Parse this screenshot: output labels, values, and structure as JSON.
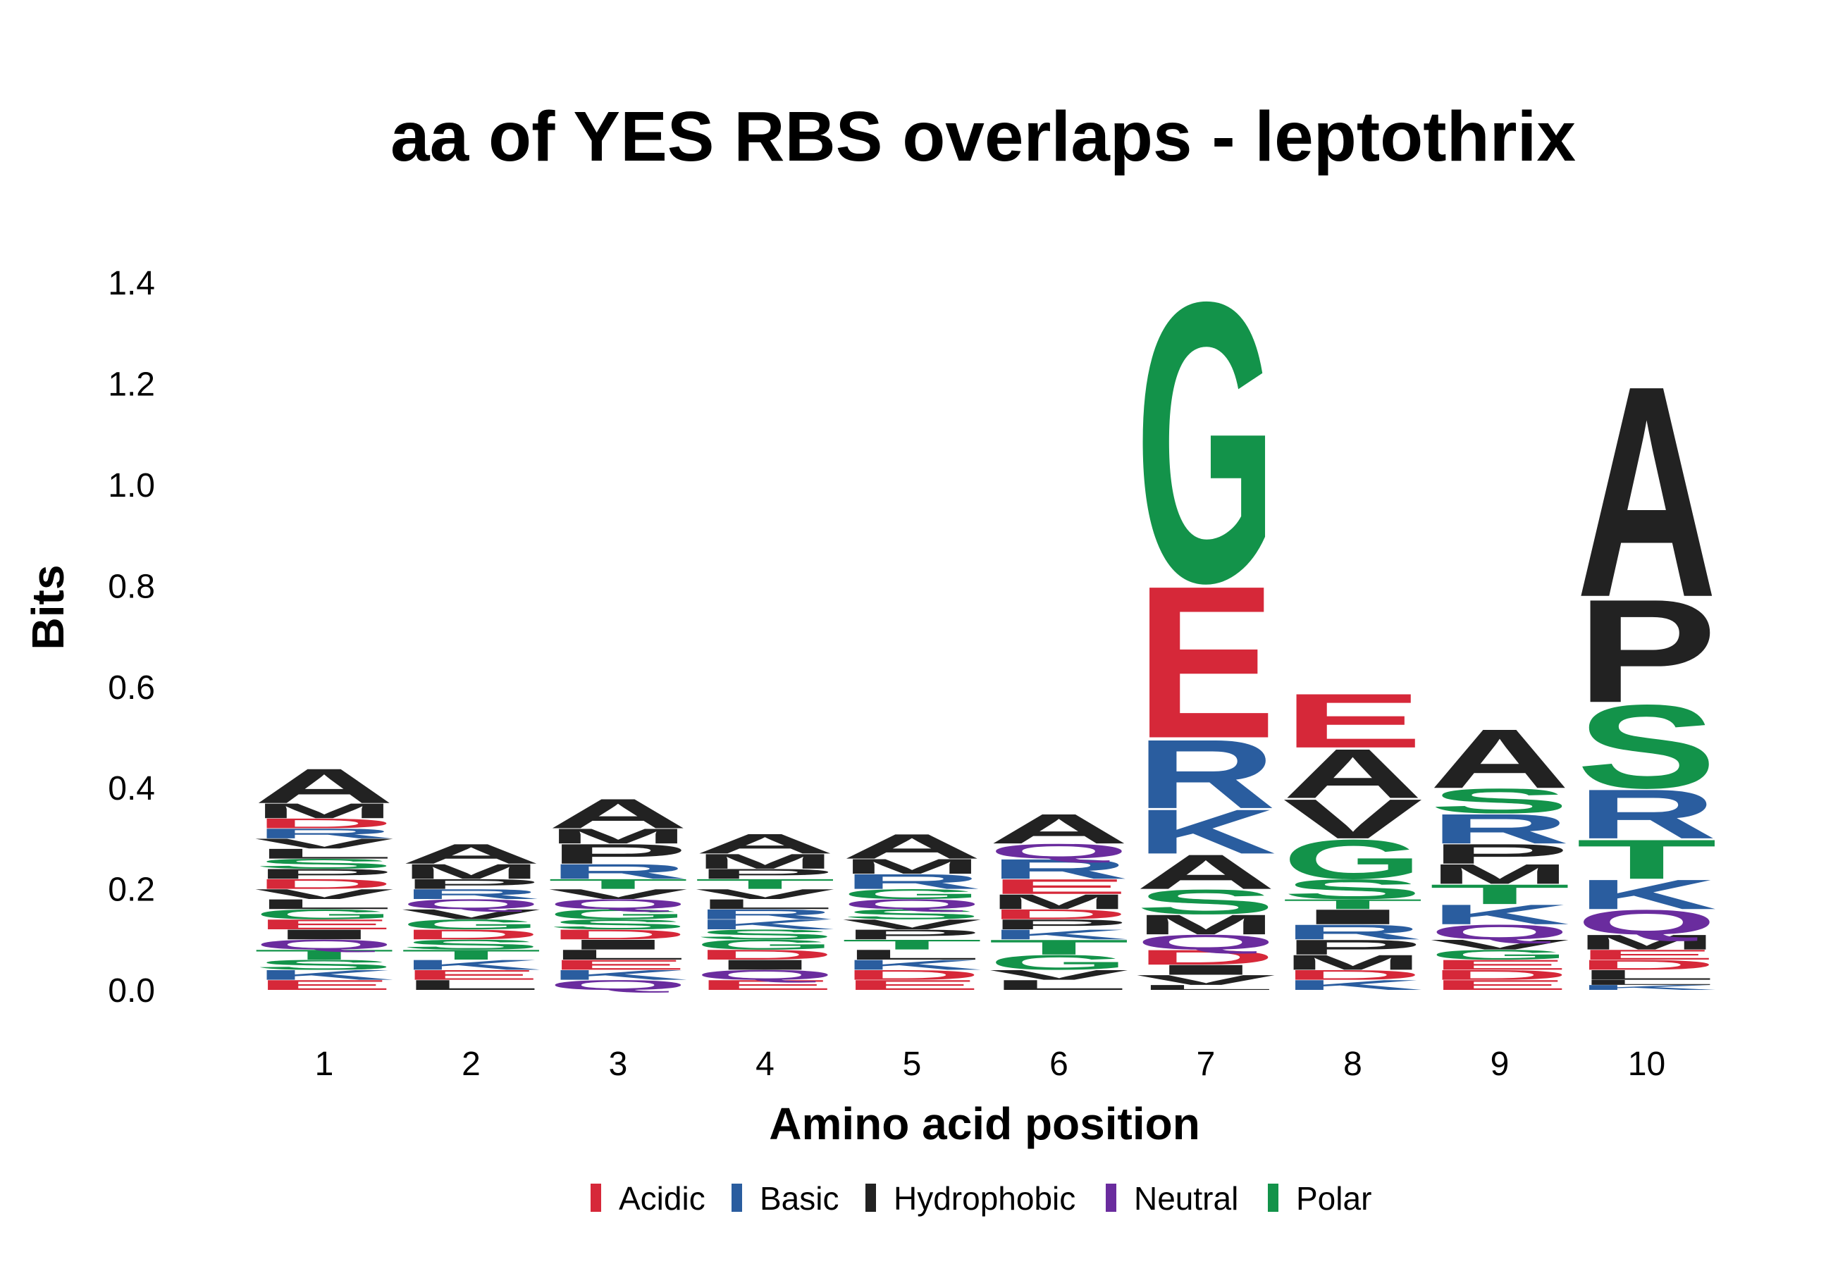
{
  "chart_data": {
    "type": "sequence-logo",
    "title": "aa of YES RBS overlaps - leptothrix",
    "xlabel": "Amino acid position",
    "ylabel": "Bits",
    "ylim": [
      0,
      1.5
    ],
    "yticks": [
      "0.0",
      "0.2",
      "0.4",
      "0.6",
      "0.8",
      "1.0",
      "1.2",
      "1.4"
    ],
    "positions": [
      "1",
      "2",
      "3",
      "4",
      "5",
      "6",
      "7",
      "8",
      "9",
      "10"
    ],
    "legend": [
      {
        "label": "Acidic",
        "color": "#d62839"
      },
      {
        "label": "Basic",
        "color": "#2a5d9f"
      },
      {
        "label": "Hydrophobic",
        "color": "#222222"
      },
      {
        "label": "Neutral",
        "color": "#6a2c9e"
      },
      {
        "label": "Polar",
        "color": "#13934a"
      }
    ],
    "columns": [
      {
        "position": "1",
        "letters": [
          {
            "aa": "E",
            "class": "Acidic",
            "bits": 0.02
          },
          {
            "aa": "K",
            "class": "Basic",
            "bits": 0.02
          },
          {
            "aa": "S",
            "class": "Polar",
            "bits": 0.02
          },
          {
            "aa": "T",
            "class": "Polar",
            "bits": 0.02
          },
          {
            "aa": "Q",
            "class": "Neutral",
            "bits": 0.02
          },
          {
            "aa": "I",
            "class": "Hydrophobic",
            "bits": 0.02
          },
          {
            "aa": "E",
            "class": "Acidic",
            "bits": 0.02
          },
          {
            "aa": "G",
            "class": "Polar",
            "bits": 0.02
          },
          {
            "aa": "L",
            "class": "Hydrophobic",
            "bits": 0.02
          },
          {
            "aa": "V",
            "class": "Hydrophobic",
            "bits": 0.02
          },
          {
            "aa": "D",
            "class": "Acidic",
            "bits": 0.02
          },
          {
            "aa": "P",
            "class": "Hydrophobic",
            "bits": 0.02
          },
          {
            "aa": "S",
            "class": "Polar",
            "bits": 0.02
          },
          {
            "aa": "L",
            "class": "Hydrophobic",
            "bits": 0.02
          },
          {
            "aa": "V",
            "class": "Hydrophobic",
            "bits": 0.02
          },
          {
            "aa": "R",
            "class": "Basic",
            "bits": 0.02
          },
          {
            "aa": "D",
            "class": "Acidic",
            "bits": 0.02
          },
          {
            "aa": "M",
            "class": "Hydrophobic",
            "bits": 0.03
          },
          {
            "aa": "A",
            "class": "Hydrophobic",
            "bits": 0.07
          }
        ]
      },
      {
        "position": "2",
        "letters": [
          {
            "aa": "L",
            "class": "Hydrophobic",
            "bits": 0.02
          },
          {
            "aa": "E",
            "class": "Acidic",
            "bits": 0.02
          },
          {
            "aa": "K",
            "class": "Basic",
            "bits": 0.02
          },
          {
            "aa": "T",
            "class": "Polar",
            "bits": 0.02
          },
          {
            "aa": "S",
            "class": "Polar",
            "bits": 0.02
          },
          {
            "aa": "D",
            "class": "Acidic",
            "bits": 0.02
          },
          {
            "aa": "G",
            "class": "Polar",
            "bits": 0.02
          },
          {
            "aa": "V",
            "class": "Hydrophobic",
            "bits": 0.02
          },
          {
            "aa": "Q",
            "class": "Neutral",
            "bits": 0.02
          },
          {
            "aa": "R",
            "class": "Basic",
            "bits": 0.02
          },
          {
            "aa": "P",
            "class": "Hydrophobic",
            "bits": 0.02
          },
          {
            "aa": "M",
            "class": "Hydrophobic",
            "bits": 0.03
          },
          {
            "aa": "A",
            "class": "Hydrophobic",
            "bits": 0.04
          }
        ]
      },
      {
        "position": "3",
        "letters": [
          {
            "aa": "Q",
            "class": "Neutral",
            "bits": 0.02
          },
          {
            "aa": "K",
            "class": "Basic",
            "bits": 0.02
          },
          {
            "aa": "E",
            "class": "Acidic",
            "bits": 0.02
          },
          {
            "aa": "L",
            "class": "Hydrophobic",
            "bits": 0.02
          },
          {
            "aa": "I",
            "class": "Hydrophobic",
            "bits": 0.02
          },
          {
            "aa": "D",
            "class": "Acidic",
            "bits": 0.02
          },
          {
            "aa": "S",
            "class": "Polar",
            "bits": 0.02
          },
          {
            "aa": "G",
            "class": "Polar",
            "bits": 0.02
          },
          {
            "aa": "Q",
            "class": "Neutral",
            "bits": 0.02
          },
          {
            "aa": "V",
            "class": "Hydrophobic",
            "bits": 0.02
          },
          {
            "aa": "T",
            "class": "Polar",
            "bits": 0.02
          },
          {
            "aa": "R",
            "class": "Basic",
            "bits": 0.03
          },
          {
            "aa": "P",
            "class": "Hydrophobic",
            "bits": 0.04
          },
          {
            "aa": "M",
            "class": "Hydrophobic",
            "bits": 0.03
          },
          {
            "aa": "A",
            "class": "Hydrophobic",
            "bits": 0.06
          }
        ]
      },
      {
        "position": "4",
        "letters": [
          {
            "aa": "E",
            "class": "Acidic",
            "bits": 0.02
          },
          {
            "aa": "Q",
            "class": "Neutral",
            "bits": 0.02
          },
          {
            "aa": "I",
            "class": "Hydrophobic",
            "bits": 0.02
          },
          {
            "aa": "D",
            "class": "Acidic",
            "bits": 0.02
          },
          {
            "aa": "G",
            "class": "Polar",
            "bits": 0.02
          },
          {
            "aa": "S",
            "class": "Polar",
            "bits": 0.02
          },
          {
            "aa": "K",
            "class": "Basic",
            "bits": 0.02
          },
          {
            "aa": "R",
            "class": "Basic",
            "bits": 0.02
          },
          {
            "aa": "L",
            "class": "Hydrophobic",
            "bits": 0.02
          },
          {
            "aa": "V",
            "class": "Hydrophobic",
            "bits": 0.02
          },
          {
            "aa": "T",
            "class": "Polar",
            "bits": 0.02
          },
          {
            "aa": "P",
            "class": "Hydrophobic",
            "bits": 0.02
          },
          {
            "aa": "M",
            "class": "Hydrophobic",
            "bits": 0.03
          },
          {
            "aa": "A",
            "class": "Hydrophobic",
            "bits": 0.04
          }
        ]
      },
      {
        "position": "5",
        "letters": [
          {
            "aa": "E",
            "class": "Acidic",
            "bits": 0.02
          },
          {
            "aa": "D",
            "class": "Acidic",
            "bits": 0.02
          },
          {
            "aa": "K",
            "class": "Basic",
            "bits": 0.02
          },
          {
            "aa": "L",
            "class": "Hydrophobic",
            "bits": 0.02
          },
          {
            "aa": "T",
            "class": "Polar",
            "bits": 0.02
          },
          {
            "aa": "P",
            "class": "Hydrophobic",
            "bits": 0.02
          },
          {
            "aa": "V",
            "class": "Hydrophobic",
            "bits": 0.02
          },
          {
            "aa": "S",
            "class": "Polar",
            "bits": 0.02
          },
          {
            "aa": "Q",
            "class": "Neutral",
            "bits": 0.02
          },
          {
            "aa": "G",
            "class": "Polar",
            "bits": 0.02
          },
          {
            "aa": "R",
            "class": "Basic",
            "bits": 0.03
          },
          {
            "aa": "M",
            "class": "Hydrophobic",
            "bits": 0.03
          },
          {
            "aa": "A",
            "class": "Hydrophobic",
            "bits": 0.05
          }
        ]
      },
      {
        "position": "6",
        "letters": [
          {
            "aa": "L",
            "class": "Hydrophobic",
            "bits": 0.02
          },
          {
            "aa": "V",
            "class": "Hydrophobic",
            "bits": 0.02
          },
          {
            "aa": "G",
            "class": "Polar",
            "bits": 0.03
          },
          {
            "aa": "T",
            "class": "Polar",
            "bits": 0.03
          },
          {
            "aa": "K",
            "class": "Basic",
            "bits": 0.02
          },
          {
            "aa": "P",
            "class": "Hydrophobic",
            "bits": 0.02
          },
          {
            "aa": "D",
            "class": "Acidic",
            "bits": 0.02
          },
          {
            "aa": "M",
            "class": "Hydrophobic",
            "bits": 0.03
          },
          {
            "aa": "E",
            "class": "Acidic",
            "bits": 0.03
          },
          {
            "aa": "R",
            "class": "Basic",
            "bits": 0.04
          },
          {
            "aa": "Q",
            "class": "Neutral",
            "bits": 0.03
          },
          {
            "aa": "A",
            "class": "Hydrophobic",
            "bits": 0.06
          }
        ]
      },
      {
        "position": "7",
        "letters": [
          {
            "aa": "L",
            "class": "Hydrophobic",
            "bits": 0.01
          },
          {
            "aa": "V",
            "class": "Hydrophobic",
            "bits": 0.02
          },
          {
            "aa": "I",
            "class": "Hydrophobic",
            "bits": 0.02
          },
          {
            "aa": "D",
            "class": "Acidic",
            "bits": 0.03
          },
          {
            "aa": "Q",
            "class": "Neutral",
            "bits": 0.03
          },
          {
            "aa": "M",
            "class": "Hydrophobic",
            "bits": 0.04
          },
          {
            "aa": "S",
            "class": "Polar",
            "bits": 0.05
          },
          {
            "aa": "A",
            "class": "Hydrophobic",
            "bits": 0.07
          },
          {
            "aa": "K",
            "class": "Basic",
            "bits": 0.09
          },
          {
            "aa": "R",
            "class": "Basic",
            "bits": 0.14
          },
          {
            "aa": "E",
            "class": "Acidic",
            "bits": 0.31
          },
          {
            "aa": "G",
            "class": "Polar",
            "bits": 0.57
          }
        ]
      },
      {
        "position": "8",
        "letters": [
          {
            "aa": "K",
            "class": "Basic",
            "bits": 0.02
          },
          {
            "aa": "D",
            "class": "Acidic",
            "bits": 0.02
          },
          {
            "aa": "M",
            "class": "Hydrophobic",
            "bits": 0.03
          },
          {
            "aa": "P",
            "class": "Hydrophobic",
            "bits": 0.03
          },
          {
            "aa": "R",
            "class": "Basic",
            "bits": 0.03
          },
          {
            "aa": "I",
            "class": "Hydrophobic",
            "bits": 0.03
          },
          {
            "aa": "T",
            "class": "Polar",
            "bits": 0.02
          },
          {
            "aa": "S",
            "class": "Polar",
            "bits": 0.04
          },
          {
            "aa": "G",
            "class": "Polar",
            "bits": 0.08
          },
          {
            "aa": "V",
            "class": "Hydrophobic",
            "bits": 0.08
          },
          {
            "aa": "A",
            "class": "Hydrophobic",
            "bits": 0.1
          },
          {
            "aa": "E",
            "class": "Acidic",
            "bits": 0.11
          }
        ]
      },
      {
        "position": "9",
        "letters": [
          {
            "aa": "E",
            "class": "Acidic",
            "bits": 0.02
          },
          {
            "aa": "D",
            "class": "Acidic",
            "bits": 0.02
          },
          {
            "aa": "E",
            "class": "Acidic",
            "bits": 0.02
          },
          {
            "aa": "G",
            "class": "Polar",
            "bits": 0.02
          },
          {
            "aa": "V",
            "class": "Hydrophobic",
            "bits": 0.02
          },
          {
            "aa": "Q",
            "class": "Neutral",
            "bits": 0.03
          },
          {
            "aa": "K",
            "class": "Basic",
            "bits": 0.04
          },
          {
            "aa": "T",
            "class": "Polar",
            "bits": 0.04
          },
          {
            "aa": "M",
            "class": "Hydrophobic",
            "bits": 0.04
          },
          {
            "aa": "P",
            "class": "Hydrophobic",
            "bits": 0.04
          },
          {
            "aa": "R",
            "class": "Basic",
            "bits": 0.06
          },
          {
            "aa": "S",
            "class": "Polar",
            "bits": 0.05
          },
          {
            "aa": "A",
            "class": "Hydrophobic",
            "bits": 0.12
          }
        ]
      },
      {
        "position": "10",
        "letters": [
          {
            "aa": "K",
            "class": "Basic",
            "bits": 0.01
          },
          {
            "aa": "L",
            "class": "Hydrophobic",
            "bits": 0.01
          },
          {
            "aa": "L",
            "class": "Hydrophobic",
            "bits": 0.02
          },
          {
            "aa": "D",
            "class": "Acidic",
            "bits": 0.02
          },
          {
            "aa": "E",
            "class": "Acidic",
            "bits": 0.02
          },
          {
            "aa": "M",
            "class": "Hydrophobic",
            "bits": 0.03
          },
          {
            "aa": "Q",
            "class": "Neutral",
            "bits": 0.05
          },
          {
            "aa": "K",
            "class": "Basic",
            "bits": 0.06
          },
          {
            "aa": "T",
            "class": "Polar",
            "bits": 0.08
          },
          {
            "aa": "R",
            "class": "Basic",
            "bits": 0.1
          },
          {
            "aa": "S",
            "class": "Polar",
            "bits": 0.17
          },
          {
            "aa": "P",
            "class": "Hydrophobic",
            "bits": 0.21
          },
          {
            "aa": "A",
            "class": "Hydrophobic",
            "bits": 0.43
          }
        ]
      }
    ]
  }
}
